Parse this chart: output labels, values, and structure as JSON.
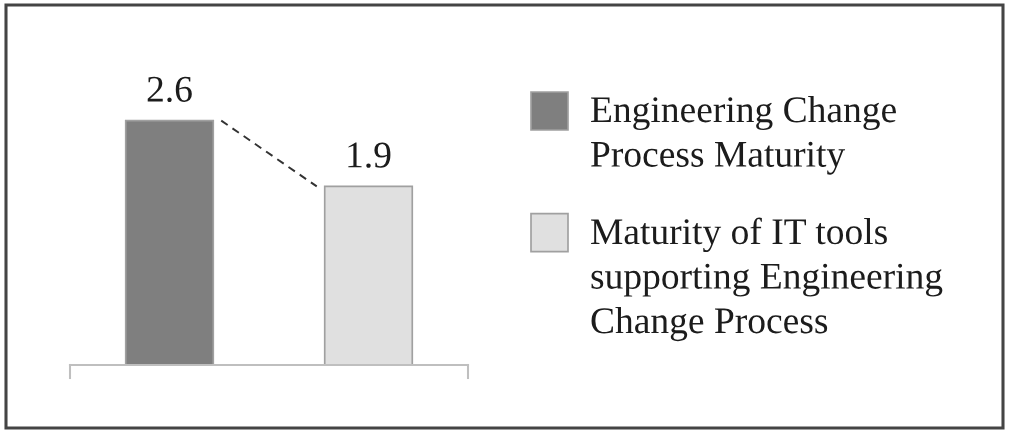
{
  "chart_data": {
    "type": "bar",
    "categories": [
      null,
      null
    ],
    "series": [
      {
        "name": "Engineering Change Process Maturity",
        "color": "#7f7f7f",
        "values": [
          2.6,
          null
        ]
      },
      {
        "name": "Maturity of IT tools supporting Engineering Change Process",
        "color": "#e0e0e0",
        "values": [
          null,
          1.9
        ]
      }
    ],
    "stacked": true,
    "data_labels": true,
    "legend": "right",
    "tick_labels": false,
    "grid": false,
    "line_style": "dashed"
  }
}
